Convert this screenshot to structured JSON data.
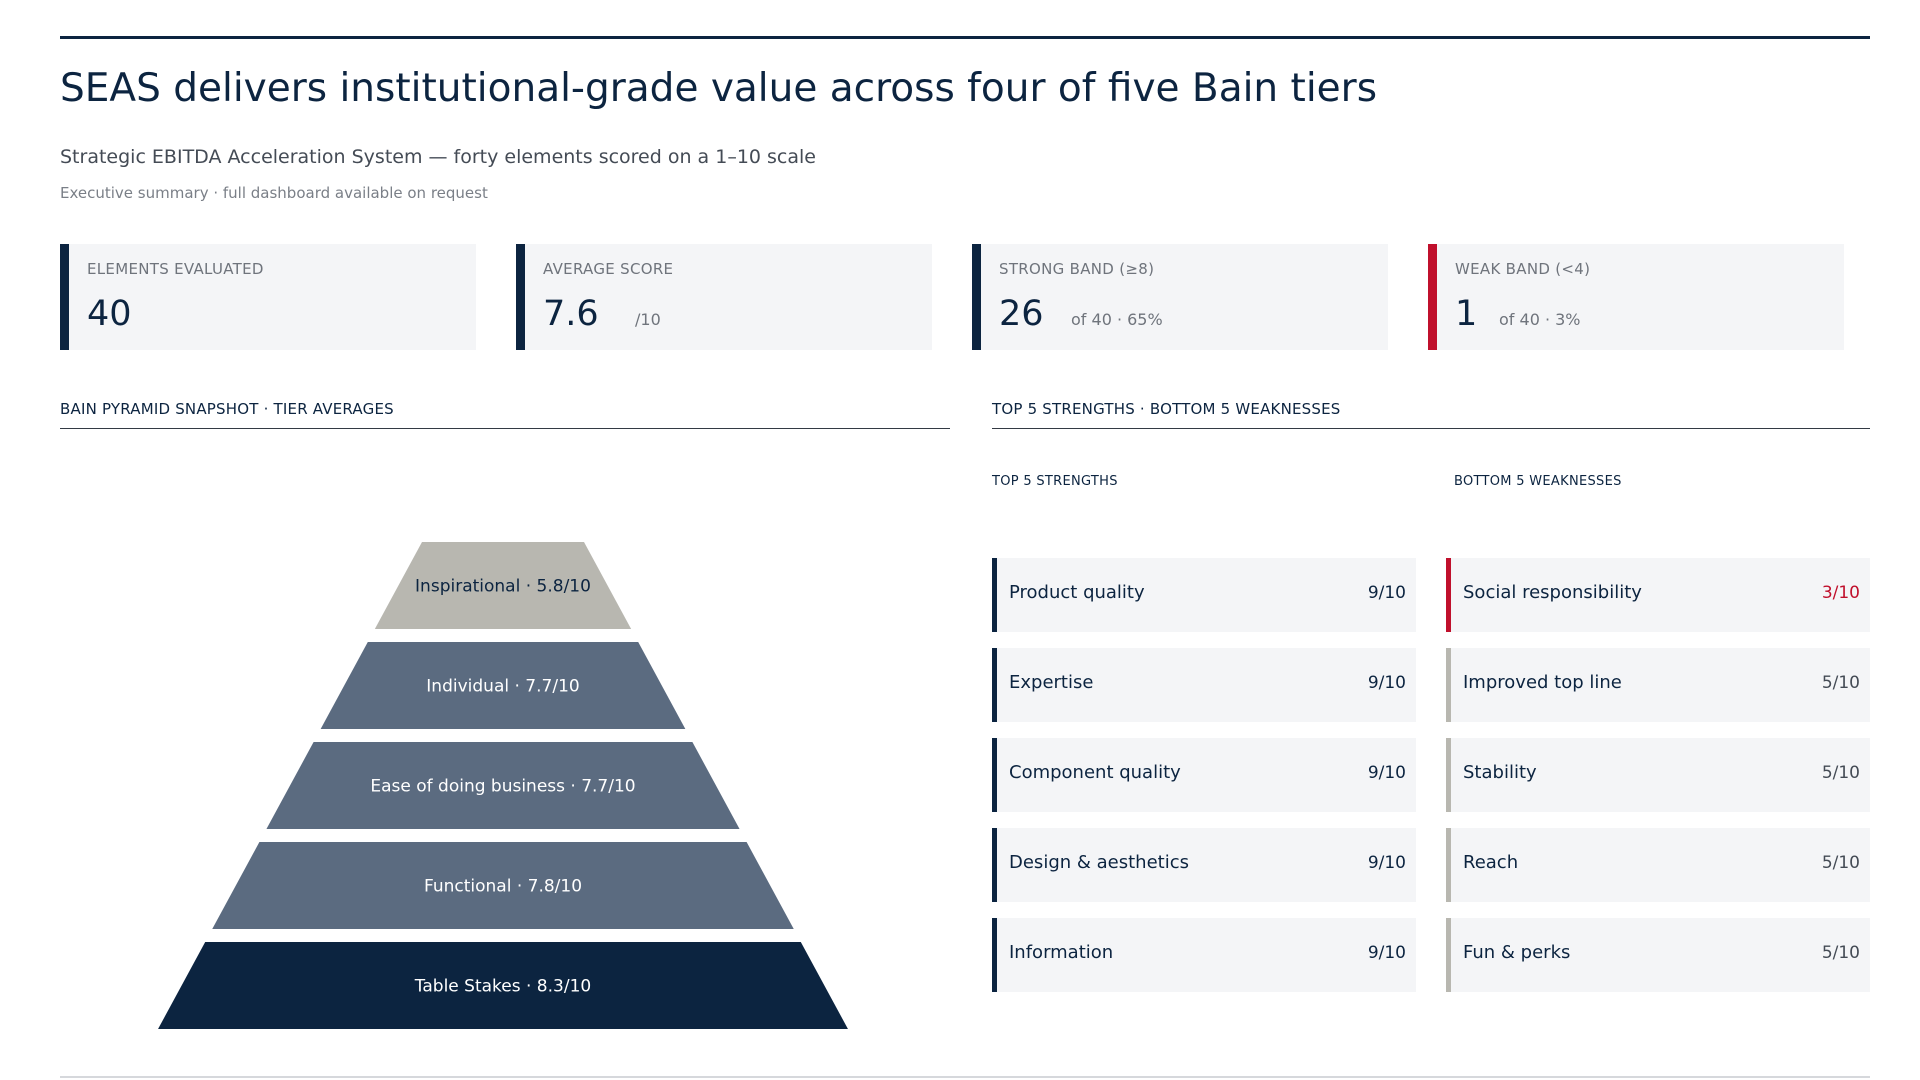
{
  "header": {
    "title": "SEAS delivers institutional-grade value across four of five Bain tiers",
    "subtitle": "Strategic EBITDA Acceleration System — forty elements scored on a 1–10 scale",
    "note": "Executive summary · full dashboard available on request"
  },
  "kpis": [
    {
      "label": "ELEMENTS EVALUATED",
      "value": "40",
      "suffix": ""
    },
    {
      "label": "AVERAGE SCORE",
      "value": "7.6",
      "suffix": "/10"
    },
    {
      "label": "STRONG BAND (≥8)",
      "value": "26",
      "suffix": "of 40 · 65%"
    },
    {
      "label": "WEAK BAND (<4)",
      "value": "1",
      "suffix": "of 40 · 3%"
    }
  ],
  "sections": {
    "pyramid_title": "BAIN PYRAMID SNAPSHOT · TIER AVERAGES",
    "lists_title": "TOP 5 STRENGTHS · BOTTOM 5 WEAKNESSES",
    "strengths_title": "TOP 5 STRENGTHS",
    "weaknesses_title": "BOTTOM 5 WEAKNESSES"
  },
  "colors": {
    "navy": "#0c2440",
    "slate": "#5b6b80",
    "gray": "#b8b7b0",
    "red": "#c0102c",
    "card": "#f4f5f7"
  },
  "chart_data": {
    "type": "bar",
    "title": "BAIN PYRAMID SNAPSHOT · TIER AVERAGES",
    "scale": [
      1,
      10
    ],
    "tiers": [
      {
        "label": "Inspirational · 5.8/10",
        "name": "Inspirational",
        "value": 5.8
      },
      {
        "label": "Individual · 7.7/10",
        "name": "Individual",
        "value": 7.7
      },
      {
        "label": "Ease of doing business · 7.7/10",
        "name": "Ease of doing business",
        "value": 7.7
      },
      {
        "label": "Functional · 7.8/10",
        "name": "Functional",
        "value": 7.8
      },
      {
        "label": "Table Stakes · 8.3/10",
        "name": "Table Stakes",
        "value": 8.3
      }
    ]
  },
  "strengths": [
    {
      "label": "Product quality",
      "score": "9/10"
    },
    {
      "label": "Expertise",
      "score": "9/10"
    },
    {
      "label": "Component quality",
      "score": "9/10"
    },
    {
      "label": "Design & aesthetics",
      "score": "9/10"
    },
    {
      "label": "Information",
      "score": "9/10"
    }
  ],
  "weaknesses": [
    {
      "label": "Social responsibility",
      "score": "3/10"
    },
    {
      "label": "Improved top line",
      "score": "5/10"
    },
    {
      "label": "Stability",
      "score": "5/10"
    },
    {
      "label": "Reach",
      "score": "5/10"
    },
    {
      "label": "Fun & perks",
      "score": "5/10"
    }
  ]
}
